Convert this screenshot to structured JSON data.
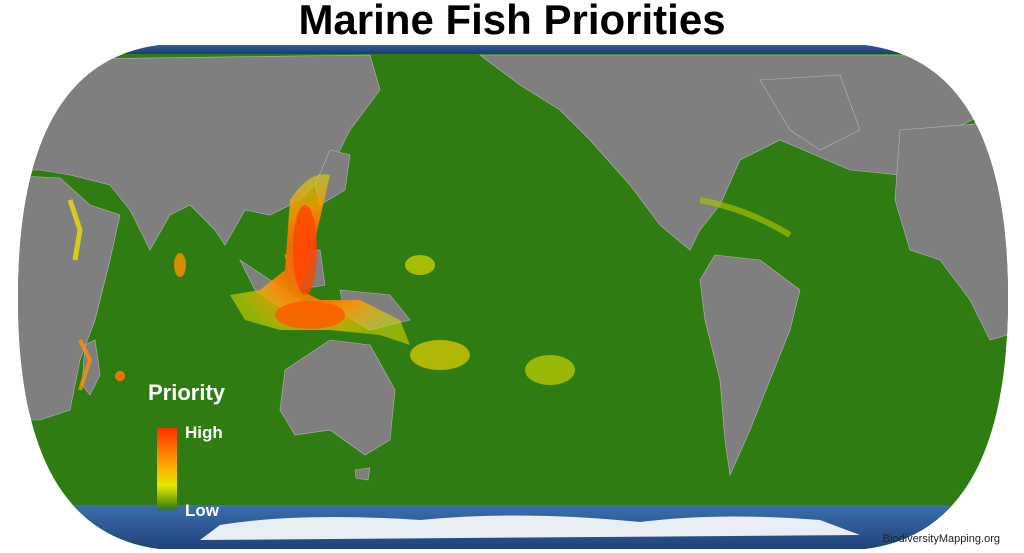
{
  "title": "Marine Fish Priorities",
  "legend": {
    "title": "Priority",
    "high": "High",
    "low": "Low"
  },
  "credit": "BiodiversityMapping.org"
}
